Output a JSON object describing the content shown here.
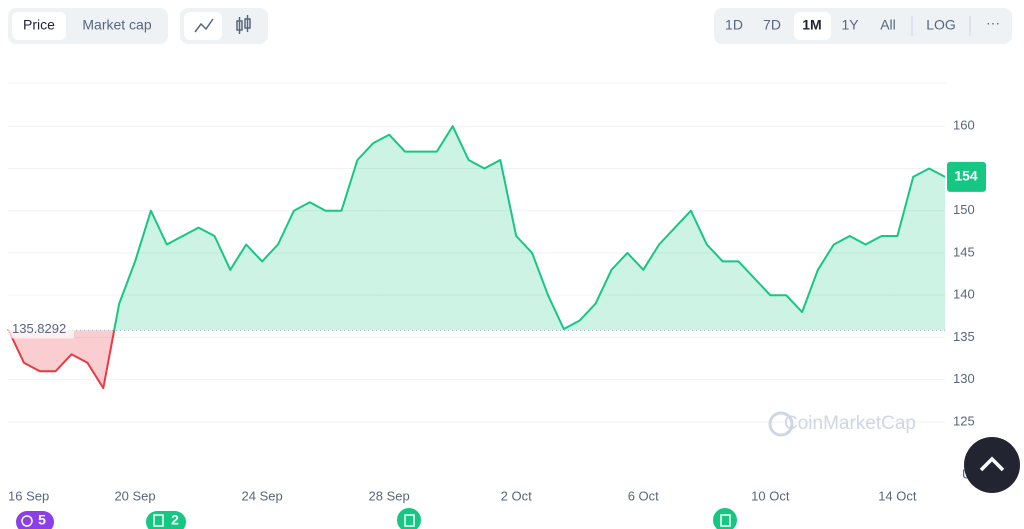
{
  "chart_data": {
    "type": "line",
    "categories": [
      "16 Sep",
      null,
      null,
      null,
      null,
      null,
      null,
      null,
      "20 Sep",
      null,
      null,
      null,
      null,
      null,
      null,
      null,
      "24 Sep",
      null,
      null,
      null,
      null,
      null,
      null,
      null,
      "28 Sep",
      null,
      null,
      null,
      null,
      null,
      null,
      null,
      "2 Oct",
      null,
      null,
      null,
      null,
      null,
      null,
      null,
      "6 Oct",
      null,
      null,
      null,
      null,
      null,
      null,
      null,
      "10 Oct",
      null,
      null,
      null,
      null,
      null,
      null,
      null,
      "14 Oct",
      null,
      null,
      null
    ],
    "values": [
      136,
      132,
      131,
      131,
      133,
      132,
      129,
      139,
      144,
      150,
      146,
      147,
      148,
      147,
      143,
      146,
      144,
      146,
      150,
      151,
      150,
      150,
      156,
      158,
      159,
      157,
      157,
      157,
      160,
      156,
      155,
      156,
      147,
      145,
      140,
      136,
      137,
      139,
      143,
      145,
      143,
      146,
      148,
      150,
      146,
      144,
      144,
      142,
      140,
      140,
      138,
      143,
      146,
      147,
      146,
      147,
      147,
      154,
      155,
      154
    ],
    "baseline": 135.8292,
    "price_label": 154,
    "up_color": "#16c784",
    "down_color": "#ea3943",
    "ylim": [
      118,
      165
    ],
    "yticks": [
      125,
      130,
      135,
      140,
      145,
      150,
      155,
      160
    ],
    "ytick_labels_shown": [
      125,
      130,
      135,
      140,
      145,
      150,
      160
    ],
    "y_unit": "USD",
    "grid": true
  },
  "ui": {
    "tabs": [
      "Price",
      "Market cap"
    ],
    "ranges": [
      "1D",
      "7D",
      "1M",
      "1Y",
      "All"
    ],
    "log": "LOG",
    "watermark": "CoinMarketCap",
    "events": [
      "5",
      "2"
    ]
  }
}
